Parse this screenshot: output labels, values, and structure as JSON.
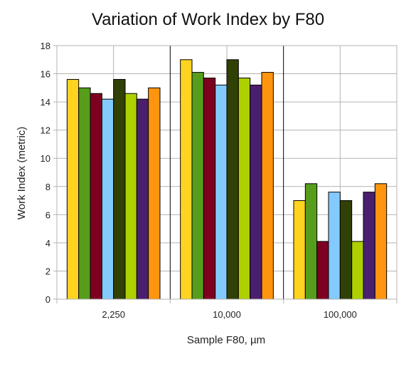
{
  "chart_data": {
    "type": "bar",
    "title": "Variation of Work Index by F80",
    "xlabel": "Sample F80, µm",
    "ylabel": "Work Index (metric)",
    "categories": [
      "2,250",
      "10,000",
      "100,000"
    ],
    "ylim": [
      0,
      18
    ],
    "yticks": [
      0,
      2,
      4,
      6,
      8,
      10,
      12,
      14,
      16,
      18
    ],
    "grid": true,
    "legend": "none",
    "series": [
      {
        "color": "#ffd320",
        "values": [
          15.6,
          17.0,
          7.0
        ]
      },
      {
        "color": "#579d1c",
        "values": [
          15.0,
          16.1,
          8.2
        ]
      },
      {
        "color": "#7e0021",
        "values": [
          14.6,
          15.7,
          4.1
        ]
      },
      {
        "color": "#83caff",
        "values": [
          14.2,
          15.2,
          7.6
        ]
      },
      {
        "color": "#314004",
        "values": [
          15.6,
          17.0,
          7.0
        ]
      },
      {
        "color": "#aecf00",
        "values": [
          14.6,
          15.7,
          4.1
        ]
      },
      {
        "color": "#4b1f6f",
        "values": [
          14.2,
          15.2,
          7.6
        ]
      },
      {
        "color": "#ff950e",
        "values": [
          15.0,
          16.1,
          8.2
        ]
      }
    ]
  }
}
